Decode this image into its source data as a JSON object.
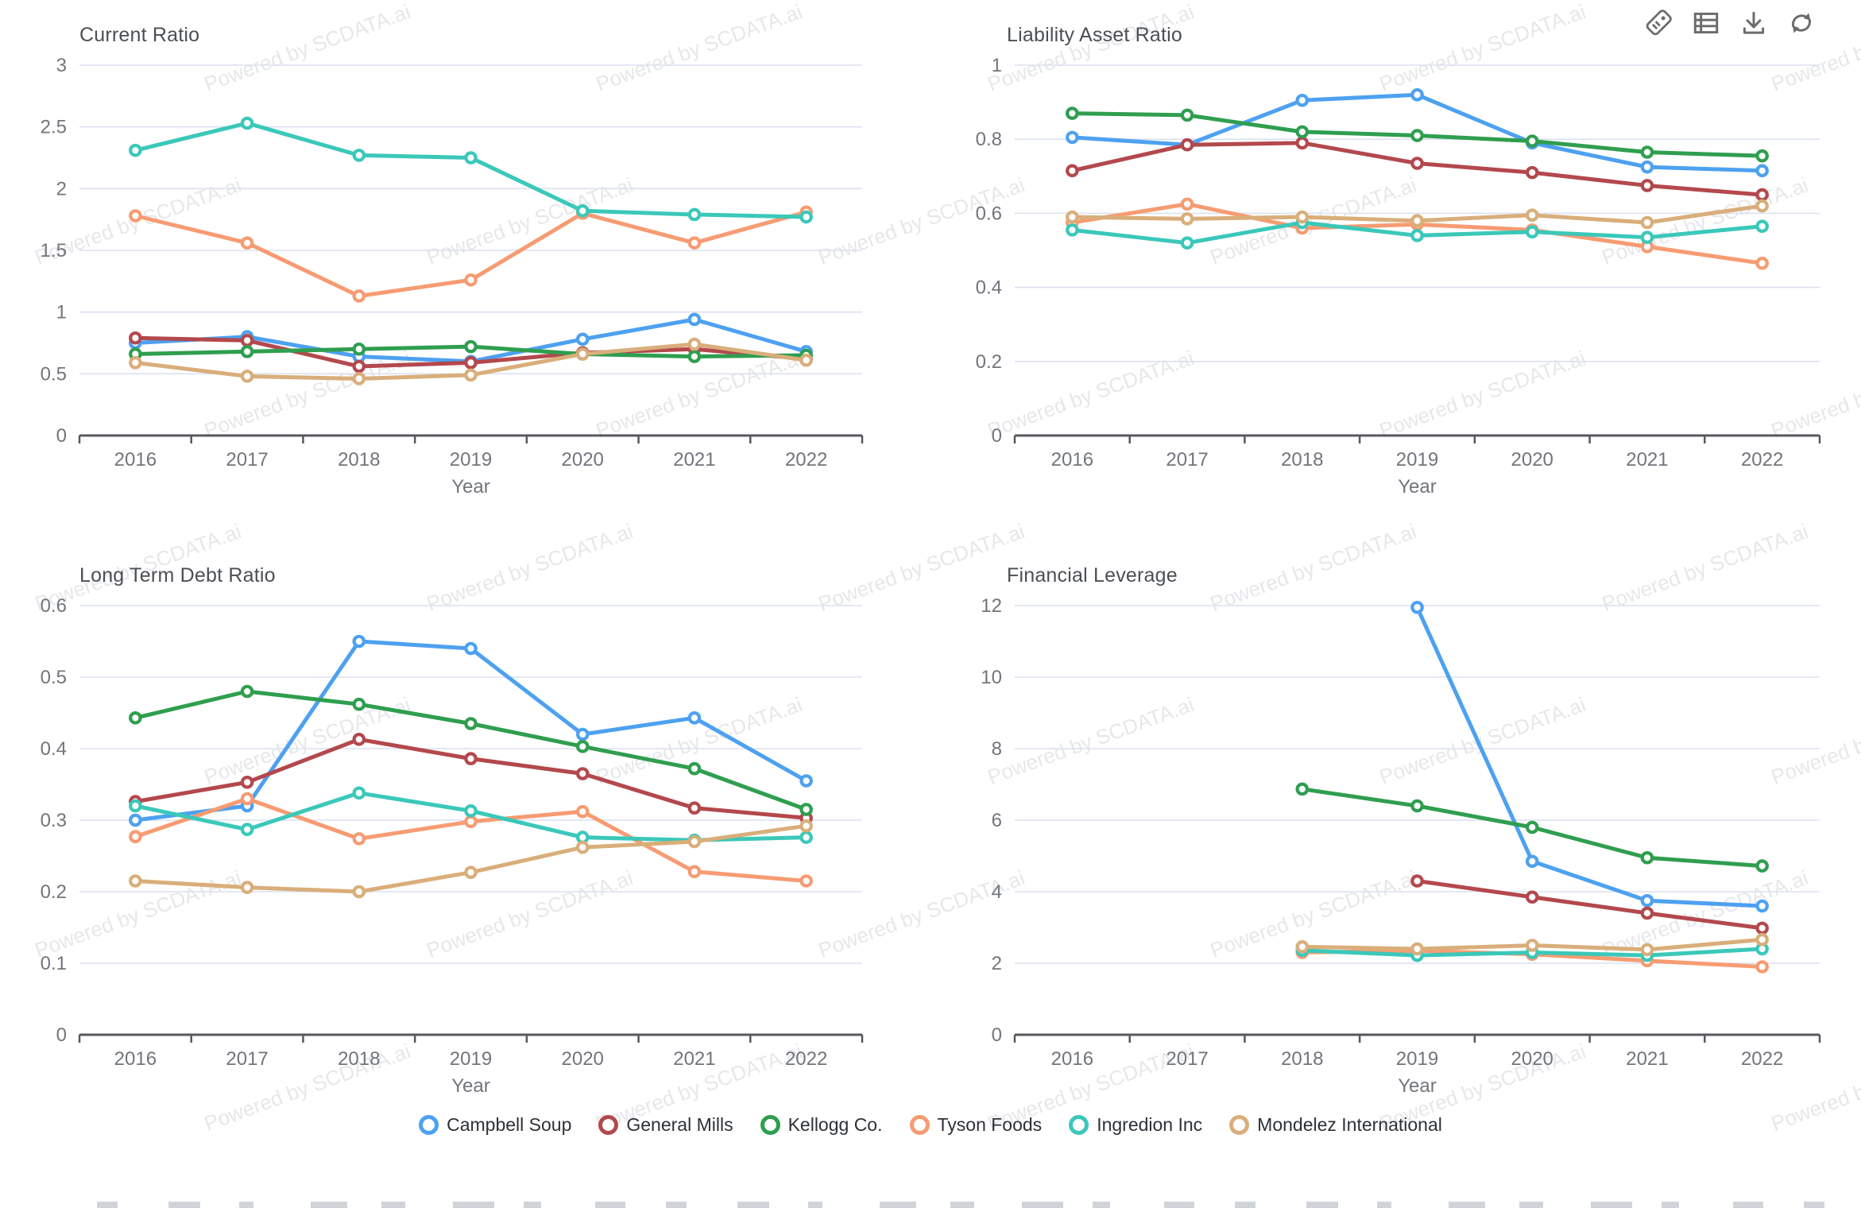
{
  "watermark": {
    "text": "Powered by SCDATA.ai"
  },
  "toolbar": {
    "icons": [
      {
        "name": "tag-icon"
      },
      {
        "name": "table-icon"
      },
      {
        "name": "download-icon"
      },
      {
        "name": "refresh-icon"
      }
    ]
  },
  "legend": {
    "items": [
      {
        "label": "Campbell Soup",
        "color": "#4da1f0"
      },
      {
        "label": "General Mills",
        "color": "#b3484d"
      },
      {
        "label": "Kellogg Co.",
        "color": "#2f9e4f"
      },
      {
        "label": "Tyson Foods",
        "color": "#f79b72"
      },
      {
        "label": "Ingredion Inc",
        "color": "#3ac8b9"
      },
      {
        "label": "Mondelez International",
        "color": "#d9ae7a"
      }
    ]
  },
  "chart_data": [
    {
      "type": "line",
      "title": "Current Ratio",
      "xlabel": "Year",
      "categories": [
        "2016",
        "2017",
        "2018",
        "2019",
        "2020",
        "2021",
        "2022"
      ],
      "ylim": [
        0,
        3
      ],
      "ytick_step": 0.5,
      "grid": true,
      "legend_position": "bottom-shared",
      "series": [
        {
          "name": "Campbell Soup",
          "color": "#4da1f0",
          "values": [
            0.75,
            0.8,
            0.64,
            0.6,
            0.78,
            0.94,
            0.68
          ]
        },
        {
          "name": "General Mills",
          "color": "#b3484d",
          "values": [
            0.79,
            0.77,
            0.56,
            0.59,
            0.67,
            0.7,
            0.62
          ]
        },
        {
          "name": "Kellogg Co.",
          "color": "#2f9e4f",
          "values": [
            0.66,
            0.68,
            0.7,
            0.72,
            0.66,
            0.64,
            0.65
          ]
        },
        {
          "name": "Tyson Foods",
          "color": "#f79b72",
          "values": [
            1.78,
            1.56,
            1.13,
            1.26,
            1.8,
            1.56,
            1.81
          ]
        },
        {
          "name": "Ingredion Inc",
          "color": "#3ac8b9",
          "values": [
            2.31,
            2.53,
            2.27,
            2.25,
            1.82,
            1.79,
            1.77
          ]
        },
        {
          "name": "Mondelez International",
          "color": "#d9ae7a",
          "values": [
            0.59,
            0.48,
            0.46,
            0.49,
            0.66,
            0.74,
            0.61
          ]
        }
      ]
    },
    {
      "type": "line",
      "title": "Liability Asset Ratio",
      "xlabel": "Year",
      "categories": [
        "2016",
        "2017",
        "2018",
        "2019",
        "2020",
        "2021",
        "2022"
      ],
      "ylim": [
        0,
        1
      ],
      "ytick_step": 0.2,
      "grid": true,
      "legend_position": "bottom-shared",
      "series": [
        {
          "name": "Campbell Soup",
          "color": "#4da1f0",
          "values": [
            0.805,
            0.785,
            0.905,
            0.92,
            0.79,
            0.725,
            0.715
          ]
        },
        {
          "name": "General Mills",
          "color": "#b3484d",
          "values": [
            0.715,
            0.785,
            0.79,
            0.735,
            0.71,
            0.675,
            0.65
          ]
        },
        {
          "name": "Kellogg Co.",
          "color": "#2f9e4f",
          "values": [
            0.87,
            0.865,
            0.82,
            0.81,
            0.795,
            0.765,
            0.755
          ]
        },
        {
          "name": "Tyson Foods",
          "color": "#f79b72",
          "values": [
            0.575,
            0.625,
            0.56,
            0.57,
            0.555,
            0.51,
            0.465
          ]
        },
        {
          "name": "Ingredion Inc",
          "color": "#3ac8b9",
          "values": [
            0.555,
            0.52,
            0.575,
            0.54,
            0.55,
            0.535,
            0.565
          ]
        },
        {
          "name": "Mondelez International",
          "color": "#d9ae7a",
          "values": [
            0.59,
            0.585,
            0.59,
            0.58,
            0.595,
            0.575,
            0.62
          ]
        }
      ]
    },
    {
      "type": "line",
      "title": "Long Term Debt Ratio",
      "xlabel": "Year",
      "categories": [
        "2016",
        "2017",
        "2018",
        "2019",
        "2020",
        "2021",
        "2022"
      ],
      "ylim": [
        0,
        0.6
      ],
      "ytick_step": 0.1,
      "grid": true,
      "legend_position": "bottom-shared",
      "series": [
        {
          "name": "Campbell Soup",
          "color": "#4da1f0",
          "values": [
            0.3,
            0.32,
            0.55,
            0.54,
            0.42,
            0.443,
            0.355
          ]
        },
        {
          "name": "General Mills",
          "color": "#b3484d",
          "values": [
            0.326,
            0.353,
            0.413,
            0.386,
            0.365,
            0.317,
            0.303
          ]
        },
        {
          "name": "Kellogg Co.",
          "color": "#2f9e4f",
          "values": [
            0.443,
            0.48,
            0.462,
            0.435,
            0.403,
            0.372,
            0.315
          ]
        },
        {
          "name": "Tyson Foods",
          "color": "#f79b72",
          "values": [
            0.277,
            0.33,
            0.274,
            0.298,
            0.312,
            0.228,
            0.215
          ]
        },
        {
          "name": "Ingredion Inc",
          "color": "#3ac8b9",
          "values": [
            0.32,
            0.287,
            0.338,
            0.313,
            0.276,
            0.272,
            0.276
          ]
        },
        {
          "name": "Mondelez International",
          "color": "#d9ae7a",
          "values": [
            0.215,
            0.206,
            0.2,
            0.227,
            0.262,
            0.27,
            0.292
          ]
        }
      ]
    },
    {
      "type": "line",
      "title": "Financial Leverage",
      "xlabel": "Year",
      "categories": [
        "2016",
        "2017",
        "2018",
        "2019",
        "2020",
        "2021",
        "2022"
      ],
      "ylim": [
        0,
        12
      ],
      "ytick_step": 2,
      "grid": true,
      "legend_position": "bottom-shared",
      "series": [
        {
          "name": "Campbell Soup",
          "color": "#4da1f0",
          "values": [
            null,
            null,
            null,
            11.95,
            4.85,
            3.75,
            3.6
          ]
        },
        {
          "name": "General Mills",
          "color": "#b3484d",
          "values": [
            null,
            null,
            null,
            4.3,
            3.85,
            3.4,
            2.98
          ]
        },
        {
          "name": "Kellogg Co.",
          "color": "#2f9e4f",
          "values": [
            null,
            null,
            6.87,
            6.4,
            5.8,
            4.95,
            4.72
          ]
        },
        {
          "name": "Tyson Foods",
          "color": "#f79b72",
          "values": [
            null,
            null,
            2.3,
            2.35,
            2.25,
            2.07,
            1.9
          ]
        },
        {
          "name": "Ingredion Inc",
          "color": "#3ac8b9",
          "values": [
            null,
            null,
            2.36,
            2.22,
            2.3,
            2.22,
            2.4
          ]
        },
        {
          "name": "Mondelez International",
          "color": "#d9ae7a",
          "values": [
            null,
            null,
            2.46,
            2.4,
            2.5,
            2.38,
            2.66
          ]
        }
      ]
    }
  ]
}
